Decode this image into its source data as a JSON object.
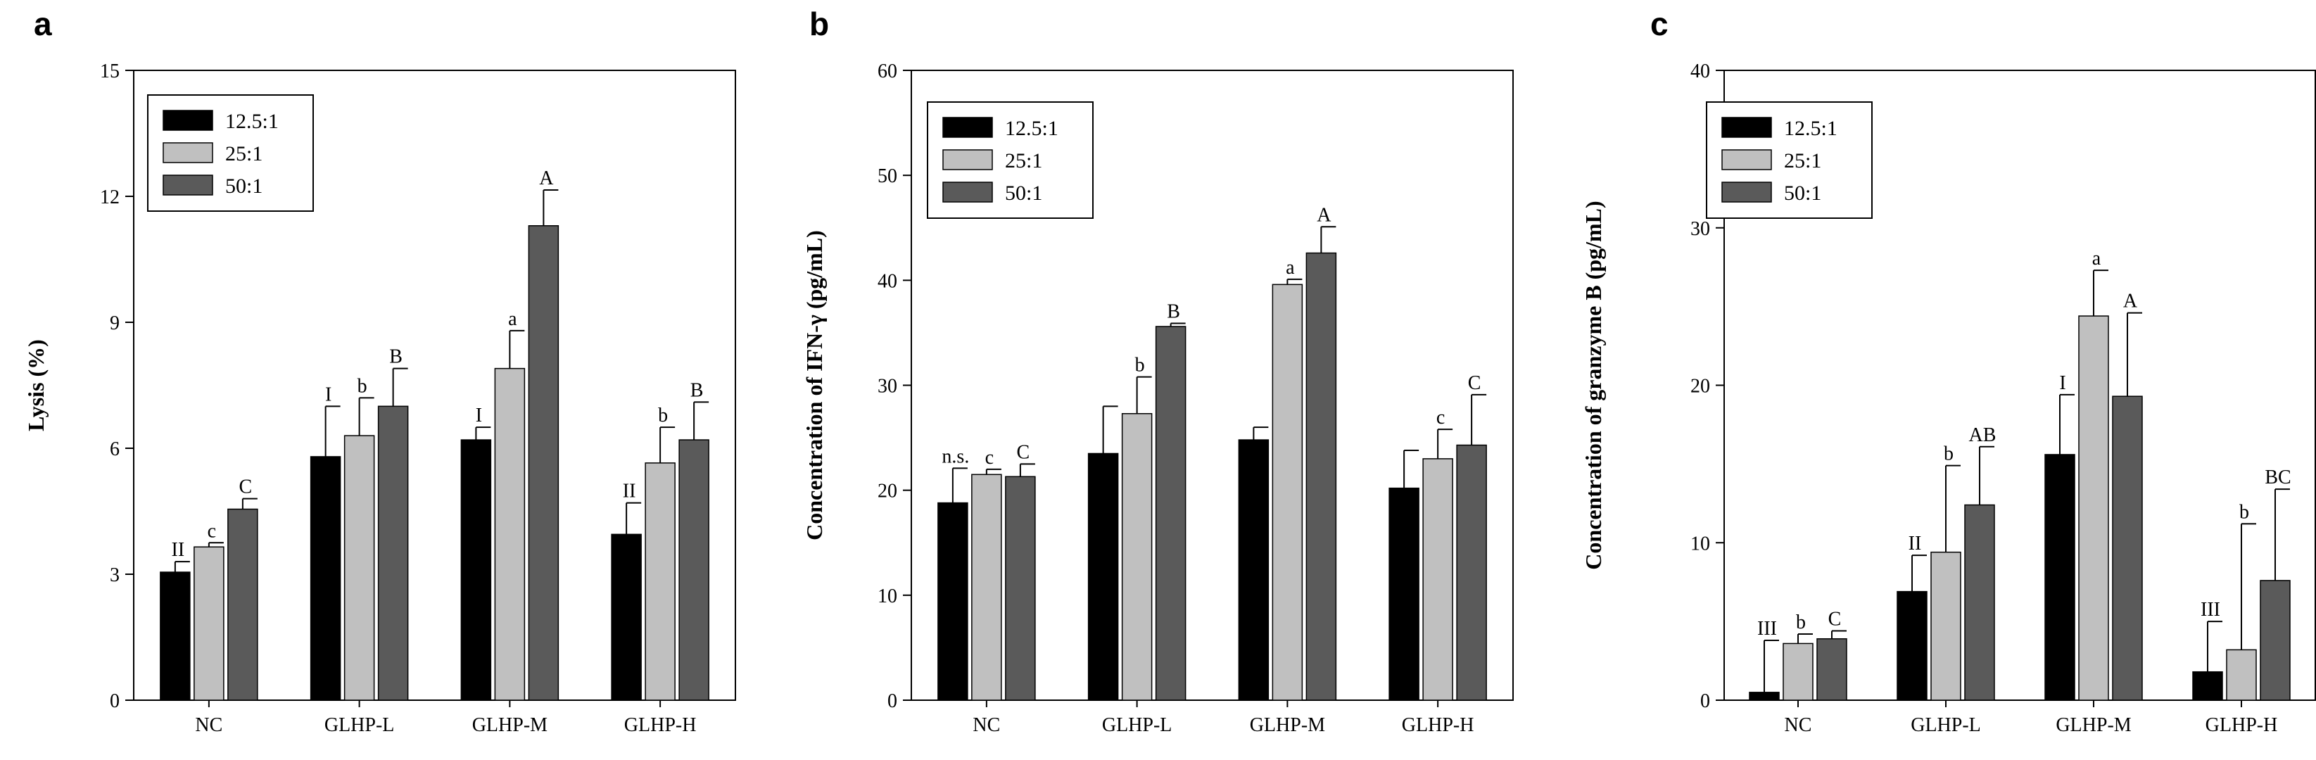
{
  "legend": {
    "entries": [
      {
        "label": "12.5:1",
        "color": "#000000"
      },
      {
        "label": "25:1",
        "color": "#c0c0c0"
      },
      {
        "label": "50:1",
        "color": "#5a5a5a"
      }
    ]
  },
  "chart_data": [
    {
      "panel": "a",
      "type": "bar",
      "categories": [
        "NC",
        "GLHP-L",
        "GLHP-M",
        "GLHP-H"
      ],
      "ylabel": "Lysis (%)",
      "ylim": [
        0,
        15
      ],
      "yticks": [
        0,
        3,
        6,
        9,
        12,
        15
      ],
      "series": [
        {
          "name": "12.5:1",
          "values": [
            3.05,
            5.8,
            6.2,
            3.95
          ],
          "errors": [
            0.25,
            1.2,
            0.3,
            0.75
          ],
          "labels": [
            "II",
            "I",
            "I",
            "II"
          ]
        },
        {
          "name": "25:1",
          "values": [
            3.65,
            6.3,
            7.9,
            5.65
          ],
          "errors": [
            0.1,
            0.9,
            0.9,
            0.85
          ],
          "labels": [
            "c",
            "b",
            "a",
            "b"
          ]
        },
        {
          "name": "50:1",
          "values": [
            4.55,
            7.0,
            11.3,
            6.2
          ],
          "errors": [
            0.25,
            0.9,
            0.85,
            0.9
          ],
          "labels": [
            "C",
            "B",
            "A",
            "B"
          ]
        }
      ]
    },
    {
      "panel": "b",
      "type": "bar",
      "categories": [
        "NC",
        "GLHP-L",
        "GLHP-M",
        "GLHP-H"
      ],
      "ylabel": "Concentration of IFN-γ (pg/mL)",
      "ylim": [
        0,
        60
      ],
      "yticks": [
        0,
        10,
        20,
        30,
        40,
        50,
        60
      ],
      "series": [
        {
          "name": "12.5:1",
          "values": [
            18.8,
            23.5,
            24.8,
            20.2
          ],
          "errors": [
            3.3,
            4.5,
            1.2,
            3.6
          ],
          "labels": [
            "n.s.",
            "",
            "",
            ""
          ]
        },
        {
          "name": "25:1",
          "values": [
            21.5,
            27.3,
            39.6,
            23.0
          ],
          "errors": [
            0.5,
            3.5,
            0.5,
            2.8
          ],
          "labels": [
            "c",
            "b",
            "a",
            "c"
          ]
        },
        {
          "name": "50:1",
          "values": [
            21.3,
            35.6,
            42.6,
            24.3
          ],
          "errors": [
            1.2,
            0.3,
            2.5,
            4.8
          ],
          "labels": [
            "C",
            "B",
            "A",
            "C"
          ]
        }
      ]
    },
    {
      "panel": "c",
      "type": "bar",
      "categories": [
        "NC",
        "GLHP-L",
        "GLHP-M",
        "GLHP-H"
      ],
      "ylabel": "Concentration of granzyme B (pg/mL)",
      "ylim": [
        0,
        40
      ],
      "yticks": [
        0,
        10,
        20,
        30,
        40
      ],
      "series": [
        {
          "name": "12.5:1",
          "values": [
            0.5,
            6.9,
            15.6,
            1.8
          ],
          "errors": [
            3.3,
            2.3,
            3.8,
            3.2
          ],
          "labels": [
            "III",
            "II",
            "I",
            "III"
          ]
        },
        {
          "name": "25:1",
          "values": [
            3.6,
            9.4,
            24.4,
            3.2
          ],
          "errors": [
            0.6,
            5.5,
            2.9,
            8.0
          ],
          "labels": [
            "b",
            "b",
            "a",
            "b"
          ]
        },
        {
          "name": "50:1",
          "values": [
            3.9,
            12.4,
            19.3,
            7.6
          ],
          "errors": [
            0.5,
            3.7,
            5.3,
            5.8
          ],
          "labels": [
            "C",
            "AB",
            "A",
            "BC"
          ]
        }
      ]
    }
  ]
}
